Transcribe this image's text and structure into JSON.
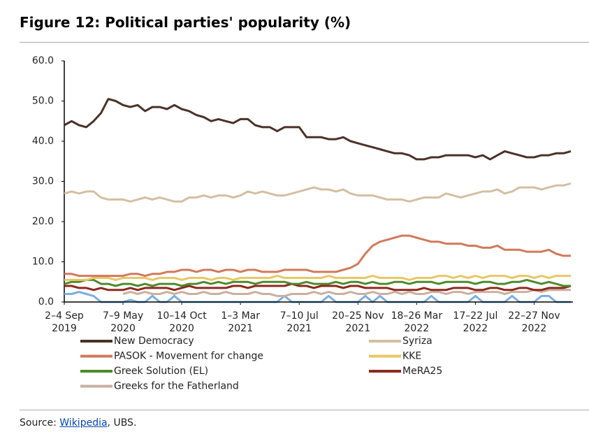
{
  "title": "Figure 12: Political parties' popularity (%)",
  "chart_data": {
    "type": "line",
    "categories": [
      "2–4 Sep 2019",
      null,
      null,
      null,
      null,
      null,
      null,
      null,
      "7–9 May 2020",
      null,
      null,
      null,
      null,
      null,
      null,
      null,
      "10–14 Oct 2020",
      null,
      null,
      null,
      null,
      null,
      null,
      null,
      "1–3 Mar 2021",
      null,
      null,
      null,
      null,
      null,
      null,
      null,
      "7–10 Jul 2021",
      null,
      null,
      null,
      null,
      null,
      null,
      null,
      "20–25 Nov 2021",
      null,
      null,
      null,
      null,
      null,
      null,
      null,
      "18–26 Mar 2022",
      null,
      null,
      null,
      null,
      null,
      null,
      null,
      "17–22 Jul 2022",
      null,
      null,
      null,
      null,
      null,
      null,
      null,
      "22–27 Nov 2022",
      null,
      null,
      null,
      null,
      null
    ],
    "ylim": [
      0,
      60
    ],
    "yticks": [
      {
        "value": 0,
        "label": "0.0"
      },
      {
        "value": 10,
        "label": "10.0"
      },
      {
        "value": 20,
        "label": "20.0"
      },
      {
        "value": 30,
        "label": "30.0"
      },
      {
        "value": 40,
        "label": "40.0"
      },
      {
        "value": 50,
        "label": "50.0"
      },
      {
        "value": 60,
        "label": "60.0"
      }
    ],
    "grid": false,
    "series": [
      {
        "name": "New Democracy",
        "color": "#4a3228",
        "values": [
          44,
          45,
          44,
          43.5,
          45,
          47,
          50.5,
          50,
          49,
          48.5,
          49,
          47.5,
          48.5,
          48.5,
          48,
          49,
          48,
          47.5,
          46.5,
          46,
          45,
          45.5,
          45,
          44.5,
          45.5,
          45.5,
          44,
          43.5,
          43.5,
          42.5,
          43.5,
          43.5,
          43.5,
          41,
          41,
          41,
          40.5,
          40.5,
          41,
          40,
          39.5,
          39,
          38.5,
          38,
          37.5,
          37,
          37,
          36.5,
          35.5,
          35.5,
          36,
          36,
          36.5,
          36.5,
          36.5,
          36.5,
          36,
          36.5,
          35.5,
          36.5,
          37.5,
          37,
          36.5,
          36,
          36,
          36.5,
          36.5,
          37,
          37,
          37.5
        ]
      },
      {
        "name": "Syriza",
        "color": "#d4bfa1",
        "values": [
          27,
          27.5,
          27,
          27.5,
          27.5,
          26,
          25.5,
          25.5,
          25.5,
          25,
          25.5,
          26,
          25.5,
          26,
          25.5,
          25,
          25,
          26,
          26,
          26.5,
          26,
          26.5,
          26.5,
          26,
          26.5,
          27.5,
          27,
          27.5,
          27,
          26.5,
          26.5,
          27,
          27.5,
          28,
          28.5,
          28,
          28,
          27.5,
          28,
          27,
          26.5,
          26.5,
          26.5,
          26,
          25.5,
          25.5,
          25.5,
          25,
          25.5,
          26,
          26,
          26,
          27,
          26.5,
          26,
          26.5,
          27,
          27.5,
          27.5,
          28,
          27,
          27.5,
          28.5,
          28.5,
          28.5,
          28,
          28.5,
          29,
          29,
          29.5
        ]
      },
      {
        "name": "PASOK - Movement for change",
        "color": "#d07a5c",
        "values": [
          7,
          7,
          6.5,
          6.5,
          6.5,
          6.5,
          6.5,
          6.5,
          6.5,
          7,
          7,
          6.5,
          7,
          7,
          7.5,
          7.5,
          8,
          8,
          7.5,
          8,
          8,
          7.5,
          8,
          8,
          7.5,
          8,
          8,
          7.5,
          7.5,
          7.5,
          8,
          8,
          8,
          8,
          7.5,
          7.5,
          7.5,
          7.5,
          8,
          8.5,
          9.5,
          12,
          14,
          15,
          15.5,
          16,
          16.5,
          16.5,
          16,
          15.5,
          15,
          15,
          14.5,
          14.5,
          14.5,
          14,
          14,
          13.5,
          13.5,
          14,
          13,
          13,
          13,
          12.5,
          12.5,
          12.5,
          13,
          12,
          11.5,
          11.5
        ]
      },
      {
        "name": "KKE",
        "color": "#e8c766",
        "values": [
          5.5,
          5.5,
          5.5,
          5.5,
          6,
          6,
          6,
          5.5,
          6,
          6,
          6,
          6,
          5.5,
          6,
          6,
          6,
          5.5,
          6,
          6,
          6,
          5.5,
          6,
          6,
          5.5,
          6,
          6,
          6,
          6,
          6,
          6.5,
          6,
          6,
          6,
          6,
          6,
          6,
          6.5,
          6,
          6,
          6,
          6,
          6,
          6.5,
          6,
          6,
          6,
          6,
          5.5,
          6,
          6,
          6,
          6.5,
          6.5,
          6,
          6.5,
          6,
          6.5,
          6,
          6.5,
          6.5,
          6.5,
          6,
          6.5,
          6.5,
          6,
          6.5,
          6,
          6.5,
          6.5,
          6.5
        ]
      },
      {
        "name": "Greek Solution (EL)",
        "color": "#4e8a2a",
        "values": [
          4.5,
          5,
          5,
          5.5,
          5.5,
          4.5,
          4.5,
          4,
          4.5,
          4.5,
          4,
          4.5,
          4,
          4.5,
          4.5,
          4.5,
          4,
          4.5,
          4.5,
          5,
          4.5,
          5,
          4.5,
          5,
          5,
          5,
          4.5,
          5,
          5,
          5,
          5,
          4.5,
          4.5,
          5,
          4.5,
          4.5,
          4.5,
          5,
          4.5,
          5,
          5,
          4.5,
          5,
          4.5,
          4.5,
          5,
          5,
          4.5,
          5,
          5,
          5,
          4.5,
          5,
          5,
          5,
          5,
          4.5,
          5,
          5,
          4.5,
          4.5,
          5,
          5,
          5.5,
          5,
          4.5,
          5,
          4.5,
          4,
          4
        ]
      },
      {
        "name": "MeRA25",
        "color": "#8b2a1e",
        "values": [
          4,
          4,
          3.5,
          3.5,
          3,
          3.5,
          3,
          3,
          3,
          3.5,
          3,
          3.5,
          3.5,
          3.5,
          3.5,
          3,
          3.5,
          4,
          3.5,
          3.5,
          3.5,
          3.5,
          3.5,
          4,
          4,
          3.5,
          4,
          4,
          4,
          4,
          4,
          4.5,
          4,
          4,
          3.5,
          4,
          4,
          4,
          3.5,
          4,
          4,
          3.5,
          3.5,
          3.5,
          3.5,
          3,
          3,
          3,
          3,
          3.5,
          3,
          3,
          3,
          3.5,
          3.5,
          3.5,
          3,
          3,
          3.5,
          3.5,
          3,
          3,
          3.5,
          3.5,
          3,
          3,
          3.5,
          3.5,
          3.5,
          4
        ]
      },
      {
        "name": "Greeks for the Fatherland",
        "color": "#c9b09f",
        "values": [
          null,
          null,
          null,
          null,
          null,
          null,
          null,
          null,
          2,
          2.5,
          2,
          2.5,
          2,
          2,
          2.5,
          2,
          2.5,
          2,
          2,
          2.5,
          2,
          2,
          2.5,
          2,
          2,
          2,
          2.5,
          2,
          2,
          1.5,
          1.5,
          2,
          2,
          2,
          2.5,
          2,
          2.5,
          2,
          2,
          2.5,
          2,
          2,
          2.5,
          2,
          2,
          2.5,
          2,
          2.5,
          2,
          2,
          2.5,
          2.5,
          2,
          2.5,
          2.5,
          2,
          2.5,
          2.5,
          2.5,
          2.5,
          2,
          2.5,
          2.5,
          2.5,
          3,
          2.5,
          3,
          3,
          3,
          3
        ]
      },
      {
        "color": "#79aee0",
        "values": [
          2,
          2,
          2.5,
          2,
          1.5,
          0,
          0,
          0,
          0,
          0.5,
          0,
          0,
          1.5,
          0,
          0,
          1.5,
          0,
          0,
          0,
          0,
          0,
          0,
          0,
          0,
          0,
          0,
          0,
          0,
          0,
          0,
          1.5,
          0,
          0,
          0,
          0,
          0,
          1.5,
          0,
          0,
          0,
          0,
          1.5,
          0,
          1.5,
          0,
          0,
          0,
          0,
          0,
          0,
          1.5,
          0,
          0,
          0,
          0,
          0,
          1.5,
          0,
          0,
          0,
          0,
          1.5,
          0,
          0,
          0,
          1.5,
          1.5,
          0,
          0,
          0
        ]
      }
    ]
  },
  "source": {
    "prefix": "Source: ",
    "link": "Wikipedia",
    "suffix": ", UBS."
  }
}
